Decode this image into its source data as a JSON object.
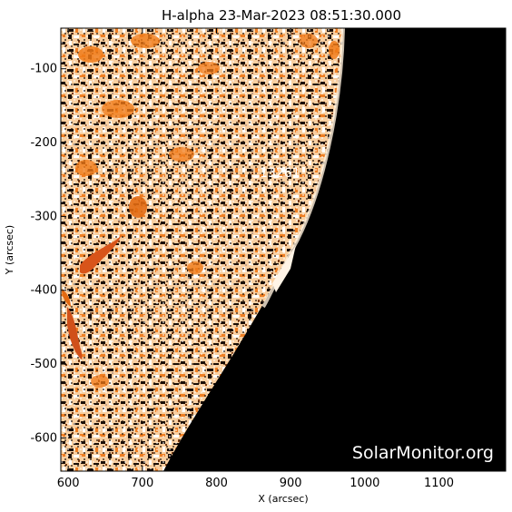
{
  "title": "H-alpha 23-Mar-2023 08:51:30.000",
  "x_axis": {
    "label": "X (arcsec)",
    "range": [
      590,
      1190
    ],
    "ticks": [
      600,
      700,
      800,
      900,
      1000,
      1100
    ]
  },
  "y_axis": {
    "label": "Y (arcsec)",
    "range": [
      -645,
      -45
    ],
    "ticks": [
      -100,
      -200,
      -300,
      -400,
      -500,
      -600
    ]
  },
  "active_region": {
    "label": "13261",
    "x": 865,
    "y": -240
  },
  "watermark": "SolarMonitor.org",
  "colors": {
    "background": "#ffffff",
    "space": "#000000",
    "disk_light": "#fde2c4",
    "disk_mid": "#f7a560",
    "plage": "#f07a18",
    "filament": "#c84a10",
    "axis": "#000000"
  }
}
